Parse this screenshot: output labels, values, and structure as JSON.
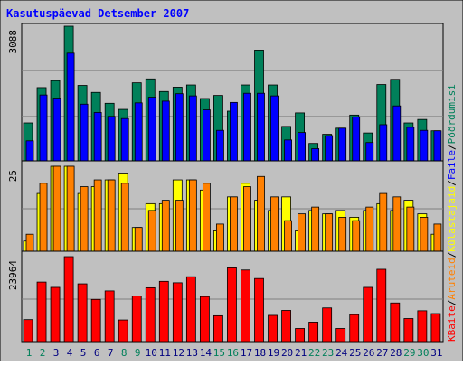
{
  "chart_data": {
    "type": "bar",
    "title": "Kasutuspäevad Detsember 2007",
    "days": [
      "1",
      "2",
      "3",
      "4",
      "5",
      "6",
      "7",
      "8",
      "9",
      "10",
      "11",
      "12",
      "13",
      "14",
      "15",
      "16",
      "17",
      "18",
      "19",
      "20",
      "21",
      "22",
      "23",
      "24",
      "25",
      "26",
      "27",
      "28",
      "29",
      "30",
      "31"
    ],
    "weekend_days": [
      "1",
      "2",
      "8",
      "9",
      "15",
      "16",
      "22",
      "23",
      "29",
      "30"
    ],
    "panels": [
      {
        "id": "hits",
        "y_max_label": "3088",
        "ylim": [
          0,
          3088
        ],
        "series": [
          {
            "name": "Pöördumisi",
            "color": "#00805a",
            "values": [
              870,
              1680,
              1840,
              3088,
              1730,
              1570,
              1320,
              1180,
              1790,
              1880,
              1590,
              1690,
              1740,
              1430,
              1500,
              1140,
              1740,
              2540,
              1740,
              790,
              1100,
              400,
              610,
              750,
              1050,
              640,
              1750,
              1870,
              870,
              950,
              690
            ]
          },
          {
            "name": "Faile",
            "color": "#0000ff",
            "values": [
              460,
              1510,
              1440,
              2470,
              1300,
              1110,
              1020,
              970,
              1330,
              1460,
              1370,
              1540,
              1490,
              1170,
              700,
              1340,
              1550,
              1550,
              1490,
              480,
              650,
              280,
              580,
              750,
              1010,
              420,
              830,
              1260,
              770,
              700,
              690
            ]
          }
        ]
      },
      {
        "id": "sites",
        "y_max_label": "25",
        "ylim": [
          0,
          25
        ],
        "series": [
          {
            "name": "Külastajaid",
            "color": "#ffff00",
            "values": [
              3,
              17,
              25,
              25,
              17,
              19,
              21,
              23,
              7,
              14,
              14,
              21,
              21,
              18,
              6,
              16,
              20,
              15,
              12,
              16,
              6,
              12,
              11,
              12,
              10,
              12,
              14,
              12,
              15,
              11,
              5
            ]
          },
          {
            "name": "Aruteid",
            "color": "#ff8000",
            "values": [
              5,
              20,
              25,
              25,
              19,
              21,
              21,
              20,
              7,
              12,
              15,
              15,
              21,
              20,
              8,
              16,
              19,
              22,
              16,
              9,
              11,
              13,
              11,
              10,
              9,
              13,
              17,
              16,
              13,
              10,
              8
            ]
          }
        ]
      },
      {
        "id": "bytes",
        "y_max_label": "23964",
        "ylim": [
          0,
          23964
        ],
        "series": [
          {
            "name": "KBaite",
            "color": "#ff0000",
            "values": [
              6200,
              16800,
              15300,
              23964,
              16300,
              11900,
              14300,
              6100,
              12900,
              15200,
              17000,
              16600,
              18300,
              12700,
              7300,
              20800,
              20200,
              17800,
              7400,
              8800,
              3700,
              5500,
              9500,
              3700,
              7600,
              15300,
              20400,
              10900,
              6500,
              8700,
              7900
            ]
          }
        ]
      }
    ],
    "right_legend": [
      {
        "text": "Pöördumisi",
        "color": "#00805a"
      },
      {
        "text": "/",
        "color": "#000000"
      },
      {
        "text": "Faile",
        "color": "#0000ff"
      },
      {
        "text": "/",
        "color": "#000000"
      },
      {
        "text": "Külastajaid",
        "color": "#ffff00"
      },
      {
        "text": "/",
        "color": "#000000"
      },
      {
        "text": "Aruteid",
        "color": "#ff8000"
      },
      {
        "text": "/",
        "color": "#000000"
      },
      {
        "text": "KBaite",
        "color": "#ff0000"
      }
    ],
    "colors": {
      "background": "#c0c0c0",
      "title": "#0000ff",
      "weekday_label": "#000080",
      "weekend_label": "#00805a",
      "gridline": "#808080"
    }
  }
}
